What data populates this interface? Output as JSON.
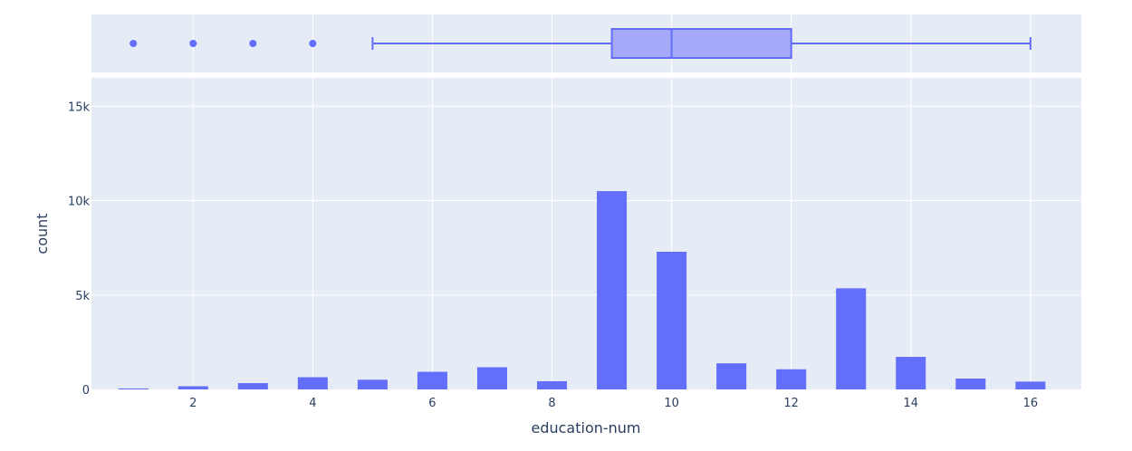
{
  "chart_data": {
    "type": "bar",
    "xlabel": "education-num",
    "ylabel": "count",
    "x_range": [
      0.3,
      16.85
    ],
    "x_ticks": [
      2,
      4,
      6,
      8,
      10,
      12,
      14,
      16
    ],
    "y_range": [
      0,
      16500
    ],
    "y_ticks": [
      {
        "value": 0,
        "label": "0"
      },
      {
        "value": 5000,
        "label": "5k"
      },
      {
        "value": 10000,
        "label": "10k"
      },
      {
        "value": 15000,
        "label": "15k"
      }
    ],
    "grid": true,
    "histogram": {
      "x": [
        1,
        2,
        3,
        4,
        5,
        6,
        7,
        8,
        9,
        10,
        11,
        12,
        13,
        14,
        15,
        16
      ],
      "counts": [
        51,
        168,
        333,
        646,
        514,
        933,
        1175,
        433,
        10501,
        7291,
        1382,
        1067,
        5355,
        1723,
        576,
        413
      ]
    },
    "boxplot": {
      "q1": 9,
      "median": 10,
      "q3": 12,
      "lower_whisker": 5,
      "upper_whisker": 16,
      "outliers": [
        1,
        2,
        3,
        4
      ]
    },
    "colors": {
      "bar": "#636efa",
      "box_fill": "#a4aaf8",
      "box_line": "#636efa",
      "plot_bg": "#e5ecf6",
      "grid": "#ffffff",
      "text": "#2a3f5f"
    }
  }
}
